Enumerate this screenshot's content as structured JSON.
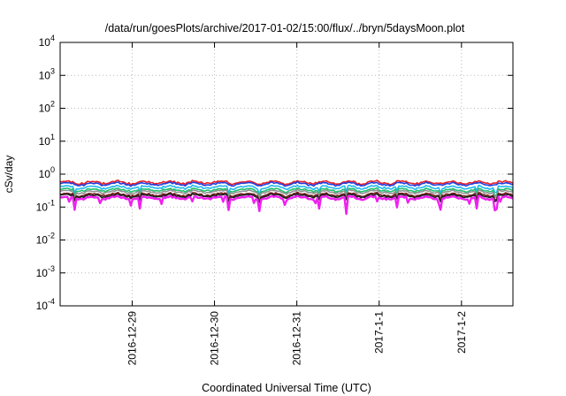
{
  "chart_data": {
    "type": "line",
    "title": "/data/run/goesPlots/archive/2017-01-02/15:00/flux/../bryn/5daysMoon.plot",
    "xlabel": "Coordinated Universal Time (UTC)",
    "ylabel": "cSv/day",
    "yscale": "log",
    "ylim": [
      0.0001,
      10000
    ],
    "xlim": [
      "2016-12-28T03:00",
      "2017-01-02T15:00"
    ],
    "x_ticks": [
      {
        "label": "2016-12-29",
        "x": "2016-12-29T00:00"
      },
      {
        "label": "2016-12-30",
        "x": "2016-12-30T00:00"
      },
      {
        "label": "2016-12-31",
        "x": "2016-12-31T00:00"
      },
      {
        "label": "2017-1-1",
        "x": "2017-01-01T00:00"
      },
      {
        "label": "2017-1-2",
        "x": "2017-01-02T00:00"
      }
    ],
    "y_ticks": [
      {
        "base": "10",
        "exp": "-4",
        "value": 0.0001
      },
      {
        "base": "10",
        "exp": "-3",
        "value": 0.001
      },
      {
        "base": "10",
        "exp": "-2",
        "value": 0.01
      },
      {
        "base": "10",
        "exp": "-1",
        "value": 0.1
      },
      {
        "base": "10",
        "exp": "0",
        "value": 1
      },
      {
        "base": "10",
        "exp": "1",
        "value": 10
      },
      {
        "base": "10",
        "exp": "2",
        "value": 100
      },
      {
        "base": "10",
        "exp": "3",
        "value": 1000
      },
      {
        "base": "10",
        "exp": "4",
        "value": 10000
      }
    ],
    "grid": true,
    "legend": "none",
    "series": [
      {
        "color": "#e8202a",
        "level": 0.56
      },
      {
        "color": "#1f3fe0",
        "level": 0.5
      },
      {
        "color": "#20b8f0",
        "level": 0.4
      },
      {
        "color": "#20c070",
        "level": 0.33
      },
      {
        "color": "#909090",
        "level": 0.29
      },
      {
        "color": "#7a1f1f",
        "level": 0.24
      },
      {
        "color": "#202020",
        "level": 0.22
      },
      {
        "color": "#f020f0",
        "level": 0.19
      }
    ]
  }
}
